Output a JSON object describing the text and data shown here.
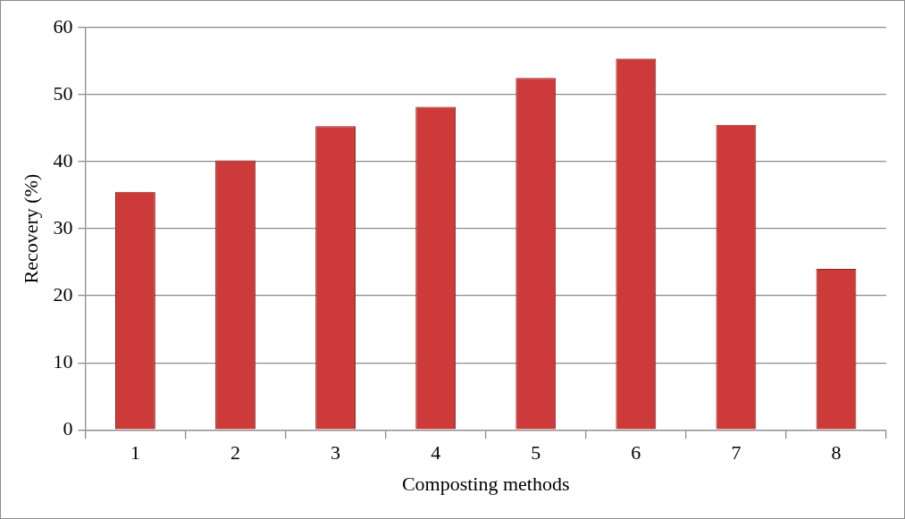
{
  "chart_data": {
    "type": "bar",
    "xlabel": "Composting methods",
    "ylabel": "Recovery (%)",
    "categories": [
      "1",
      "2",
      "3",
      "4",
      "5",
      "6",
      "7",
      "8"
    ],
    "values": [
      35.5,
      40.2,
      45.3,
      48.2,
      52.5,
      55.4,
      45.5,
      24.0
    ],
    "color": "#cc3a3a",
    "ylim": [
      0,
      60
    ],
    "yticks": [
      0,
      10,
      20,
      30,
      40,
      50,
      60
    ],
    "grid": "y",
    "legend": false
  }
}
